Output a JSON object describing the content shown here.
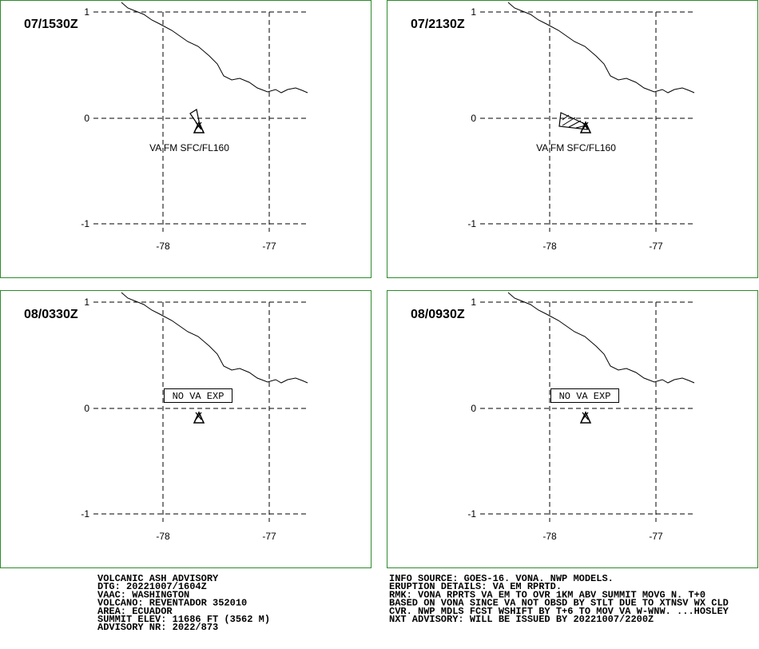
{
  "panels": [
    {
      "time": "07/1530Z",
      "label": "VA FM SFC/FL160"
    },
    {
      "time": "07/2130Z",
      "label": "VA FM SFC/FL160"
    },
    {
      "time": "08/0330Z",
      "label": "NO VA EXP"
    },
    {
      "time": "08/0930Z",
      "label": "NO VA EXP"
    }
  ],
  "axes": {
    "lat": [
      "1",
      "0",
      "-1"
    ],
    "lon": [
      "-78",
      "-77"
    ]
  },
  "advisory_left": [
    "VOLCANIC ASH ADVISORY",
    "DTG: 20221007/1604Z",
    "VAAC: WASHINGTON",
    "VOLCANO: REVENTADOR 352010",
    "AREA: ECUADOR",
    "SUMMIT ELEV: 11686 FT (3562 M)",
    "ADVISORY NR: 2022/873"
  ],
  "advisory_right": [
    "INFO SOURCE: GOES-16. VONA. NWP MODELS.",
    "ERUPTION DETAILS: VA EM RPRTD.",
    "RMK: VONA RPRTS VA EM TO OVR 1KM ABV SUMMIT MOVG N. T+0",
    "BASED ON VONA SINCE VA NOT OBSD BY STLT DUE TO XTNSV WX CLD",
    "CVR. NWP MDLS FCST WSHIFT BY T+6 TO MOV VA W-WNW. ...HOSLEY",
    "NXT ADVISORY: WILL BE ISSUED BY 20221007/2200Z"
  ]
}
